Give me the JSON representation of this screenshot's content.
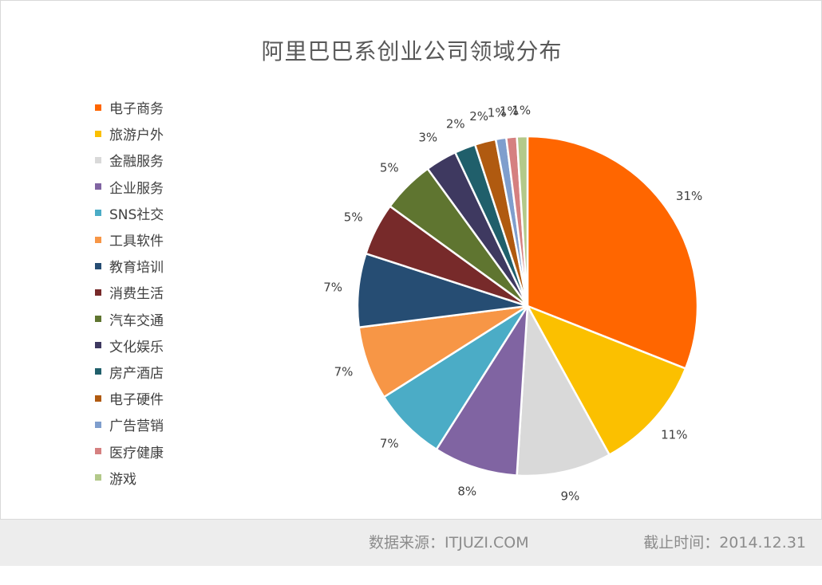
{
  "chart_data": {
    "type": "pie",
    "title": "阿里巴巴系创业公司领域分布",
    "legend_position": "left",
    "categories": [
      "电子商务",
      "旅游户外",
      "金融服务",
      "企业服务",
      "SNS社交",
      "工具软件",
      "教育培训",
      "消费生活",
      "汽车交通",
      "文化娱乐",
      "房产酒店",
      "电子硬件",
      "广告营销",
      "医疗健康",
      "游戏"
    ],
    "values": [
      31,
      11,
      9,
      8,
      7,
      7,
      7,
      5,
      5,
      3,
      2,
      2,
      1,
      1,
      1
    ],
    "labels": [
      "31%",
      "11%",
      "9%",
      "8%",
      "7%",
      "7%",
      "7%",
      "5%",
      "5%",
      "3%",
      "2%",
      "2%",
      "1%",
      "1%",
      "1%"
    ],
    "colors": [
      "#ff6600",
      "#fbc000",
      "#d9d9d9",
      "#8064a2",
      "#4bacc6",
      "#f79646",
      "#264d73",
      "#772a2a",
      "#5f7530",
      "#3e3960",
      "#205f6b",
      "#b05a10",
      "#7f9ecd",
      "#d58080",
      "#b3c98a"
    ]
  },
  "footer": {
    "source": "数据来源：ITJUZI.COM",
    "date": "截止时间：2014.12.31"
  }
}
